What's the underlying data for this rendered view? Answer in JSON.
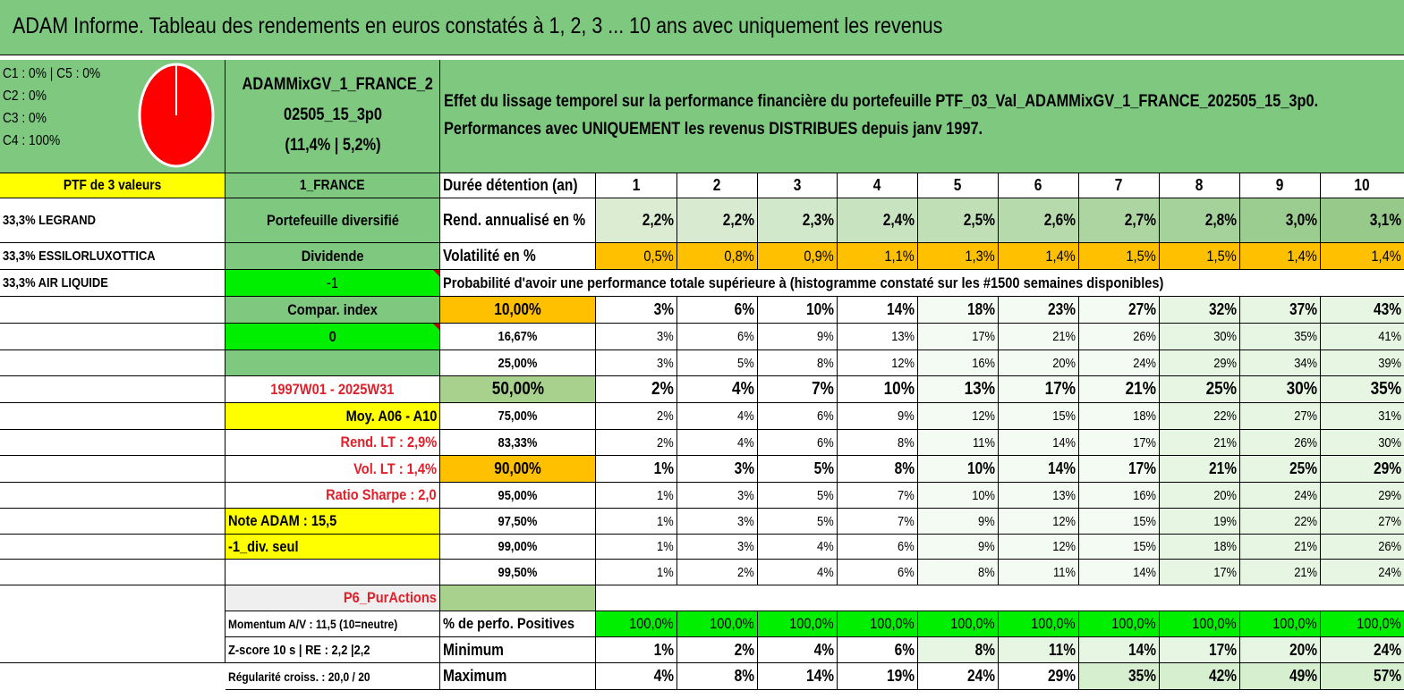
{
  "title": "ADAM Informe. Tableau des rendements en euros constatés à 1, 2, 3 ... 10 ans avec uniquement les revenus",
  "allocation": [
    "C1 : 0% | C5 : 0%",
    "C2 : 0%",
    "C3 : 0%",
    "C4 : 100%"
  ],
  "pie_color": "#ff0000",
  "portfolio_name": [
    "ADAMMixGV_1_FRANCE_2",
    "02505_15_3p0",
    "(11,4% | 5,2%)"
  ],
  "description": [
    "Effet du lissage temporel sur la performance financière du portefeuille PTF_03_Val_ADAMMixGV_1_FRANCE_202505_15_3p0.",
    "Performances avec UNIQUEMENT les revenus DISTRIBUES depuis janv 1997."
  ],
  "left": {
    "ptf_label": "PTF de 3 valeurs",
    "holdings": [
      "33,3% LEGRAND",
      "33,3% ESSILORLUXOTTICA",
      "33,3% AIR LIQUIDE"
    ]
  },
  "mid": {
    "market": "1_FRANCE",
    "type": "Portefeuille diversifié",
    "income": "Dividende",
    "param": "-1",
    "compar": "Compar. index",
    "compar_value": "0",
    "period": "1997W01 - 2025W31",
    "moy": "Moy. A06 - A10",
    "rend_lt": "Rend. LT : 2,9%",
    "vol_lt": "Vol. LT : 1,4%",
    "sharpe": "Ratio Sharpe : 2,0",
    "note": "Note ADAM : 15,5",
    "div_seul": "-1_div. seul",
    "p6": "P6_PurActions",
    "momentum": "Momentum A/V : 11,5 (10=neutre)",
    "zscore": "Z-score 10 s | RE : 2,2 |2,2",
    "regularite": "Régularité croiss. : 20,0 / 20"
  },
  "table": {
    "duration_label": "Durée détention (an)",
    "years": [
      "1",
      "2",
      "3",
      "4",
      "5",
      "6",
      "7",
      "8",
      "9",
      "10"
    ],
    "rend_label": "Rend. annualisé en %",
    "rend": [
      "2,2%",
      "2,2%",
      "2,3%",
      "2,4%",
      "2,5%",
      "2,6%",
      "2,7%",
      "2,8%",
      "3,0%",
      "3,1%"
    ],
    "vol_label": "Volatilité en %",
    "vol": [
      "0,5%",
      "0,8%",
      "0,9%",
      "1,1%",
      "1,3%",
      "1,4%",
      "1,5%",
      "1,5%",
      "1,4%",
      "1,4%"
    ],
    "prob_label": "Probabilité d'avoir une performance totale supérieure à (histogramme constaté sur les #1500 semaines disponibles)",
    "prob_rows": [
      {
        "threshold": "10,00%",
        "values": [
          "3%",
          "6%",
          "10%",
          "14%",
          "18%",
          "23%",
          "27%",
          "32%",
          "37%",
          "43%"
        ]
      },
      {
        "threshold": "16,67%",
        "values": [
          "3%",
          "6%",
          "9%",
          "13%",
          "17%",
          "21%",
          "26%",
          "30%",
          "35%",
          "41%"
        ]
      },
      {
        "threshold": "25,00%",
        "values": [
          "3%",
          "5%",
          "8%",
          "12%",
          "16%",
          "20%",
          "24%",
          "29%",
          "34%",
          "39%"
        ]
      },
      {
        "threshold": "50,00%",
        "values": [
          "2%",
          "4%",
          "7%",
          "10%",
          "13%",
          "17%",
          "21%",
          "25%",
          "30%",
          "35%"
        ]
      },
      {
        "threshold": "75,00%",
        "values": [
          "2%",
          "4%",
          "6%",
          "9%",
          "12%",
          "15%",
          "18%",
          "22%",
          "27%",
          "31%"
        ]
      },
      {
        "threshold": "83,33%",
        "values": [
          "2%",
          "4%",
          "6%",
          "8%",
          "11%",
          "14%",
          "17%",
          "21%",
          "26%",
          "30%"
        ]
      },
      {
        "threshold": "90,00%",
        "values": [
          "1%",
          "3%",
          "5%",
          "8%",
          "10%",
          "14%",
          "17%",
          "21%",
          "25%",
          "29%"
        ]
      },
      {
        "threshold": "95,00%",
        "values": [
          "1%",
          "3%",
          "5%",
          "7%",
          "10%",
          "13%",
          "16%",
          "20%",
          "24%",
          "29%"
        ]
      },
      {
        "threshold": "97,50%",
        "values": [
          "1%",
          "3%",
          "5%",
          "7%",
          "9%",
          "12%",
          "15%",
          "19%",
          "22%",
          "27%"
        ]
      },
      {
        "threshold": "99,00%",
        "values": [
          "1%",
          "3%",
          "4%",
          "6%",
          "9%",
          "12%",
          "15%",
          "18%",
          "21%",
          "26%"
        ]
      },
      {
        "threshold": "99,50%",
        "values": [
          "1%",
          "2%",
          "4%",
          "6%",
          "8%",
          "11%",
          "14%",
          "17%",
          "21%",
          "24%"
        ]
      }
    ],
    "pos_label": "% de perfo. Positives",
    "pos": [
      "100,0%",
      "100,0%",
      "100,0%",
      "100,0%",
      "100,0%",
      "100,0%",
      "100,0%",
      "100,0%",
      "100,0%",
      "100,0%"
    ],
    "min_label": "Minimum",
    "min": [
      "1%",
      "2%",
      "4%",
      "6%",
      "8%",
      "11%",
      "14%",
      "17%",
      "20%",
      "24%"
    ],
    "max_label": "Maximum",
    "max": [
      "4%",
      "8%",
      "14%",
      "19%",
      "24%",
      "29%",
      "35%",
      "42%",
      "49%",
      "57%"
    ]
  }
}
